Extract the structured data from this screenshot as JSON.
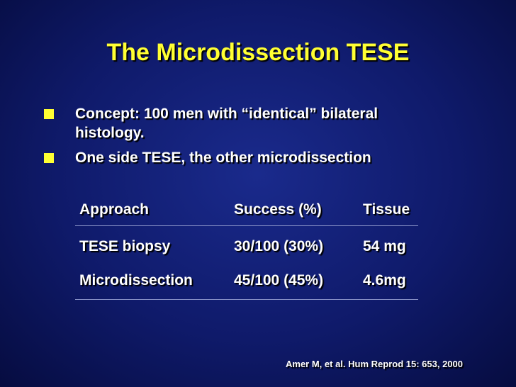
{
  "title": "The Microdissection TESE",
  "bullets": [
    "Concept: 100 men with “identical” bilateral histology.",
    "One side TESE, the other microdissection"
  ],
  "table": {
    "header": [
      "Approach",
      "Success (%)",
      "Tissue"
    ],
    "rows": [
      [
        "TESE biopsy",
        "30/100 (30%)",
        "54 mg"
      ],
      [
        "Microdissection",
        "45/100 (45%)",
        "4.6mg"
      ]
    ]
  },
  "citation": "Amer M, et al. Hum Reprod 15: 653, 2000"
}
